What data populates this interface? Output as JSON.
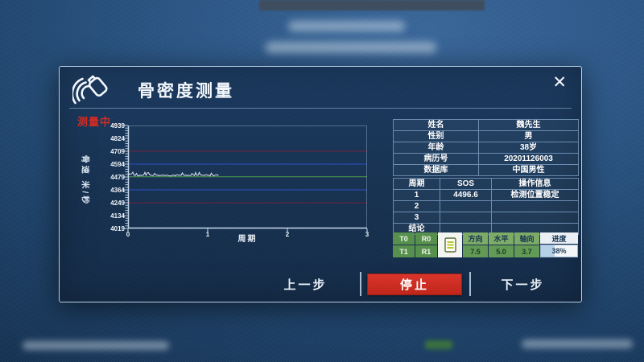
{
  "dialog": {
    "title": "骨密度测量",
    "status_text": "测量中...",
    "close_glyph": "✕"
  },
  "chart_data": {
    "type": "line",
    "title": "",
    "xlabel": "周期",
    "ylabel": "骨速 米/秒",
    "xlim": [
      0,
      3
    ],
    "ylim": [
      4019,
      4939
    ],
    "x_ticks": [
      "0",
      "1",
      "2",
      "3"
    ],
    "y_ticks": [
      4939,
      4824,
      4709,
      4594,
      4479,
      4364,
      4249,
      4134,
      4019
    ],
    "y_minor_step": 23,
    "grid": false,
    "legend": "none",
    "reference_lines": [
      {
        "y": 4709,
        "color": "#72203f"
      },
      {
        "y": 4594,
        "color": "#2a4fc4"
      },
      {
        "y": 4481,
        "color": "#4f9e49"
      },
      {
        "y": 4364,
        "color": "#2a4fc4"
      },
      {
        "y": 4249,
        "color": "#72203f"
      }
    ],
    "series": [
      {
        "name": "SOS",
        "color": "#dce6ef",
        "baseline": 4494,
        "noise": 12,
        "x_start": 0,
        "x_end": 1.15
      }
    ]
  },
  "patient_info": {
    "rows": [
      {
        "label": "姓名",
        "value": "魏先生"
      },
      {
        "label": "性别",
        "value": "男"
      },
      {
        "label": "年龄",
        "value": "38岁"
      },
      {
        "label": "病历号",
        "value": "20201126003"
      },
      {
        "label": "数据库",
        "value": "中国男性"
      }
    ]
  },
  "cycle_table": {
    "headers": [
      "周期",
      "SOS",
      "操作信息"
    ],
    "rows": [
      [
        "1",
        "4496.6",
        "检测位置稳定"
      ],
      [
        "2",
        "",
        ""
      ],
      [
        "3",
        "",
        ""
      ],
      [
        "结论",
        "",
        ""
      ]
    ]
  },
  "status_panel": {
    "t_labels": [
      "T0",
      "T1"
    ],
    "r_labels": [
      "R0",
      "R1"
    ],
    "icon": "notepad-icon",
    "columns": [
      {
        "header": "方向",
        "value": "7.5"
      },
      {
        "header": "水平",
        "value": "5.0"
      },
      {
        "header": "轴向",
        "value": "3.7"
      }
    ],
    "progress": {
      "header": "进度",
      "value": "38%",
      "percent": 38
    }
  },
  "footer_buttons": {
    "prev": "上一步",
    "stop": "停止",
    "next": "下一步"
  },
  "colors": {
    "accent_red": "#d02a22",
    "cell_green": "#568f4b",
    "progress_fill": "#b5cfe7",
    "dialog_border": "#b7cfe6"
  }
}
